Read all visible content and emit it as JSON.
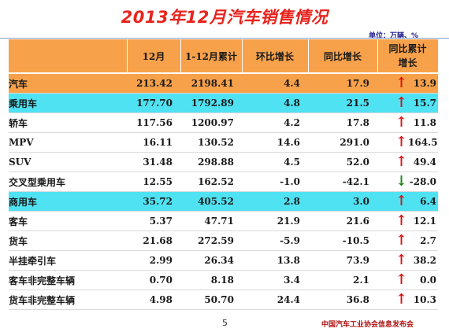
{
  "title": "2013年12月汽车销售情况",
  "unit": "单位：万辆、%",
  "headers": {
    "month": "12月",
    "cumulative": "1-12月累计",
    "mom": "环比增长",
    "yoy": "同比增长",
    "yoy_cum_line1": "同比累计",
    "yoy_cum_line2": "增长"
  },
  "rows": [
    {
      "name": "汽车",
      "month": "213.42",
      "cumulative": "2198.41",
      "mom": "4.4",
      "yoy": "17.9",
      "arrow": "↑",
      "yoy_cum": "13.9"
    },
    {
      "name": "乘用车",
      "month": "177.70",
      "cumulative": "1792.89",
      "mom": "4.8",
      "yoy": "21.5",
      "arrow": "↑",
      "yoy_cum": "15.7"
    },
    {
      "name": "轿车",
      "month": "117.56",
      "cumulative": "1200.97",
      "mom": "4.2",
      "yoy": "17.8",
      "arrow": "↑",
      "yoy_cum": "11.8"
    },
    {
      "name": "MPV",
      "month": "16.11",
      "cumulative": "130.52",
      "mom": "14.6",
      "yoy": "291.0",
      "arrow": "↑",
      "yoy_cum": "164.5"
    },
    {
      "name": "SUV",
      "month": "31.48",
      "cumulative": "298.88",
      "mom": "4.5",
      "yoy": "52.0",
      "arrow": "↑",
      "yoy_cum": "49.4"
    },
    {
      "name": "交叉型乘用车",
      "month": "12.55",
      "cumulative": "162.52",
      "mom": "-1.0",
      "yoy": "-42.1",
      "arrow": "↓",
      "yoy_cum": "-28.0"
    },
    {
      "name": "商用车",
      "month": "35.72",
      "cumulative": "405.52",
      "mom": "2.8",
      "yoy": "3.0",
      "arrow": "↑",
      "yoy_cum": "6.4"
    },
    {
      "name": "客车",
      "month": "5.37",
      "cumulative": "47.71",
      "mom": "21.9",
      "yoy": "21.6",
      "arrow": "↑",
      "yoy_cum": "12.1"
    },
    {
      "name": "货车",
      "month": "21.68",
      "cumulative": "272.59",
      "mom": "-5.9",
      "yoy": "-10.5",
      "arrow": "↑",
      "yoy_cum": "2.7"
    },
    {
      "name": "半挂牵引车",
      "month": "2.99",
      "cumulative": "26.34",
      "mom": "13.8",
      "yoy": "73.9",
      "arrow": "↑",
      "yoy_cum": "38.2"
    },
    {
      "name": "客车非完整车辆",
      "month": "0.70",
      "cumulative": "8.18",
      "mom": "3.4",
      "yoy": "2.1",
      "arrow": "↑",
      "yoy_cum": "0.0"
    },
    {
      "name": "货车非完整车辆",
      "month": "4.98",
      "cumulative": "50.70",
      "mom": "24.4",
      "yoy": "36.8",
      "arrow": "↑",
      "yoy_cum": "10.3"
    }
  ],
  "footer": {
    "page": "5",
    "source": "中国汽车工业协会信息发布会"
  },
  "colors": {
    "title": "#e8231d",
    "header_bg": "#f7a14a",
    "category_bg": "#f7a14a",
    "subcategory_bg": "#4fe2f2",
    "up_arrow": "#dd1010",
    "down_arrow": "#138a13"
  }
}
